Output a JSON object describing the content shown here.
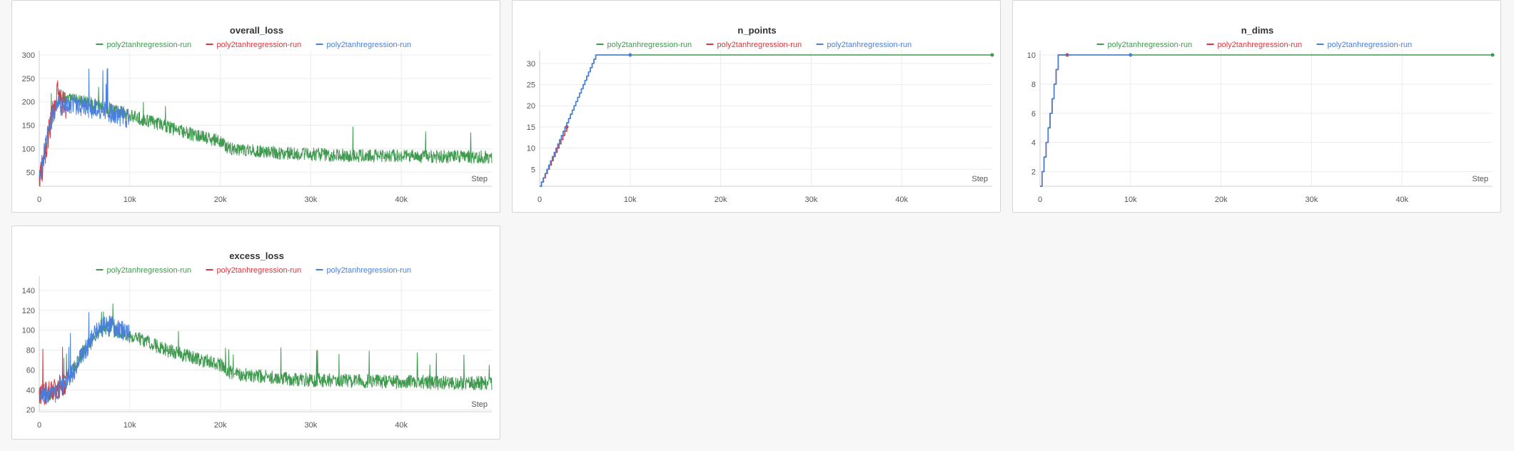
{
  "colors": {
    "green": "#3f9a4f",
    "red": "#d9363e",
    "blue": "#4a7fdb"
  },
  "chart_data": [
    {
      "type": "line",
      "title": "overall_loss",
      "xlabel": "Step",
      "ylabel": "",
      "xlim": [
        0,
        50000
      ],
      "ylim": [
        20,
        300
      ],
      "x_ticks": [
        0,
        10000,
        20000,
        30000,
        40000
      ],
      "x_tick_labels": [
        "0",
        "10k",
        "20k",
        "30k",
        "40k"
      ],
      "y_ticks": [
        50,
        100,
        150,
        200,
        250,
        300
      ],
      "y_tick_labels": [
        "50",
        "100",
        "150",
        "200",
        "250",
        "300"
      ],
      "grid": true,
      "legend_placement": "top-center",
      "series": [
        {
          "name": "poly2tanhregression-run",
          "color": "green",
          "x": [
            0,
            500,
            1000,
            1500,
            2000,
            2500,
            3000,
            4000,
            5000,
            6000,
            7000,
            8000,
            9000,
            10000,
            12000,
            14000,
            16000,
            18000,
            20000,
            21000,
            22000,
            24000,
            26000,
            28000,
            30000,
            32000,
            34000,
            36000,
            38000,
            40000,
            42000,
            44000,
            46000,
            48000,
            50000
          ],
          "y": [
            40,
            80,
            140,
            180,
            200,
            210,
            205,
            205,
            200,
            195,
            190,
            185,
            180,
            170,
            160,
            148,
            135,
            125,
            115,
            100,
            98,
            95,
            92,
            90,
            88,
            87,
            86,
            85,
            85,
            84,
            84,
            83,
            83,
            83,
            82
          ],
          "noise": 14
        },
        {
          "name": "poly2tanhregression-run",
          "color": "red",
          "x": [
            0,
            500,
            1000,
            1500,
            2000,
            2500,
            3000
          ],
          "y": [
            30,
            70,
            130,
            180,
            220,
            200,
            190
          ],
          "noise": 30
        },
        {
          "name": "poly2tanhregression-run",
          "color": "blue",
          "x": [
            0,
            500,
            1000,
            1500,
            2000,
            3000,
            4000,
            5000,
            6000,
            7000,
            8000,
            9000,
            10000
          ],
          "y": [
            30,
            90,
            140,
            170,
            190,
            195,
            195,
            190,
            185,
            180,
            175,
            170,
            165
          ],
          "noise": 22
        }
      ]
    },
    {
      "type": "line",
      "title": "n_points",
      "xlabel": "Step",
      "ylabel": "",
      "xlim": [
        0,
        50000
      ],
      "ylim": [
        1,
        32
      ],
      "x_ticks": [
        0,
        10000,
        20000,
        30000,
        40000
      ],
      "x_tick_labels": [
        "0",
        "10k",
        "20k",
        "30k",
        "40k"
      ],
      "y_ticks": [
        5,
        10,
        15,
        20,
        25,
        30
      ],
      "y_tick_labels": [
        "5",
        "10",
        "15",
        "20",
        "25",
        "30"
      ],
      "grid": true,
      "legend_placement": "top-center",
      "series": [
        {
          "name": "poly2tanhregression-run",
          "color": "green",
          "x": [
            0,
            6200,
            50000
          ],
          "y": [
            1,
            32,
            32
          ],
          "step": true,
          "end_dot": true
        },
        {
          "name": "poly2tanhregression-run",
          "color": "red",
          "x": [
            0,
            3000
          ],
          "y": [
            1,
            15
          ],
          "step": true,
          "end_dot": true
        },
        {
          "name": "poly2tanhregression-run",
          "color": "blue",
          "x": [
            0,
            6200,
            10000
          ],
          "y": [
            1,
            32,
            32
          ],
          "step": true,
          "end_dot": true
        }
      ]
    },
    {
      "type": "line",
      "title": "n_dims",
      "xlabel": "Step",
      "ylabel": "",
      "xlim": [
        0,
        50000
      ],
      "ylim": [
        1,
        10
      ],
      "x_ticks": [
        0,
        10000,
        20000,
        30000,
        40000
      ],
      "x_tick_labels": [
        "0",
        "10k",
        "20k",
        "30k",
        "40k"
      ],
      "y_ticks": [
        2,
        4,
        6,
        8,
        10
      ],
      "y_tick_labels": [
        "2",
        "4",
        "6",
        "8",
        "10"
      ],
      "grid": true,
      "legend_placement": "top-center",
      "series": [
        {
          "name": "poly2tanhregression-run",
          "color": "green",
          "x": [
            0,
            2000,
            50000
          ],
          "y": [
            1,
            10,
            10
          ],
          "step": true,
          "end_dot": true
        },
        {
          "name": "poly2tanhregression-run",
          "color": "red",
          "x": [
            0,
            2000,
            3000
          ],
          "y": [
            1,
            10,
            10
          ],
          "step": true,
          "end_dot": true
        },
        {
          "name": "poly2tanhregression-run",
          "color": "blue",
          "x": [
            0,
            2000,
            10000
          ],
          "y": [
            1,
            10,
            10
          ],
          "step": true,
          "end_dot": true
        }
      ]
    },
    {
      "type": "line",
      "title": "excess_loss",
      "xlabel": "Step",
      "ylabel": "",
      "xlim": [
        0,
        50000
      ],
      "ylim": [
        18,
        150
      ],
      "x_ticks": [
        0,
        10000,
        20000,
        30000,
        40000
      ],
      "x_tick_labels": [
        "0",
        "10k",
        "20k",
        "30k",
        "40k"
      ],
      "y_ticks": [
        20,
        40,
        60,
        80,
        100,
        120,
        140
      ],
      "y_tick_labels": [
        "20",
        "40",
        "60",
        "80",
        "100",
        "120",
        "140"
      ],
      "grid": true,
      "legend_placement": "top-center",
      "series": [
        {
          "name": "poly2tanhregression-run",
          "color": "green",
          "x": [
            0,
            1000,
            2000,
            3000,
            4000,
            5000,
            6000,
            7000,
            8000,
            9000,
            10000,
            12000,
            14000,
            16000,
            18000,
            20000,
            21000,
            22000,
            24000,
            26000,
            28000,
            30000,
            32000,
            34000,
            36000,
            38000,
            40000,
            42000,
            44000,
            46000,
            48000,
            50000
          ],
          "y": [
            35,
            35,
            40,
            50,
            65,
            80,
            95,
            100,
            100,
            98,
            95,
            88,
            80,
            75,
            70,
            65,
            58,
            56,
            54,
            52,
            51,
            50,
            50,
            49,
            49,
            48,
            48,
            48,
            47,
            47,
            47,
            47
          ],
          "noise": 7
        },
        {
          "name": "poly2tanhregression-run",
          "color": "red",
          "x": [
            0,
            1000,
            2000,
            3000
          ],
          "y": [
            35,
            38,
            42,
            48
          ],
          "noise": 12
        },
        {
          "name": "poly2tanhregression-run",
          "color": "blue",
          "x": [
            0,
            1000,
            2000,
            3000,
            4000,
            5000,
            6000,
            7000,
            8000,
            9000,
            10000
          ],
          "y": [
            35,
            35,
            38,
            48,
            62,
            78,
            95,
            105,
            105,
            100,
            97
          ],
          "noise": 10
        }
      ]
    }
  ]
}
